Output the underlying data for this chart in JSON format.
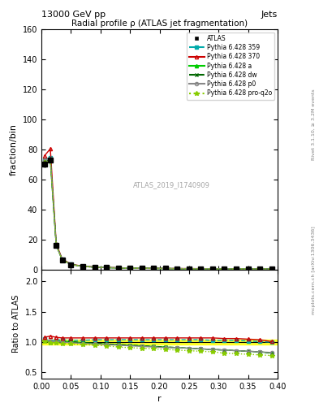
{
  "title": "Radial profile ρ (ATLAS jet fragmentation)",
  "top_left_label": "13000 GeV pp",
  "top_right_label": "Jets",
  "xlabel": "r",
  "ylabel_main": "fraction/bin",
  "ylabel_ratio": "Ratio to ATLAS",
  "right_label1": "Rivet 3.1.10, ≥ 3.2M events",
  "right_label2": "mcplots.cern.ch [arXiv:1306.3436]",
  "watermark": "ATLAS_2019_I1740909",
  "xlim": [
    0,
    0.4
  ],
  "main_ylim": [
    0,
    160
  ],
  "main_yticks": [
    0,
    20,
    40,
    60,
    80,
    100,
    120,
    140,
    160
  ],
  "ratio_ylim": [
    0.4,
    2.2
  ],
  "ratio_yticks": [
    0.5,
    1.0,
    1.5,
    2.0
  ],
  "r_values": [
    0.005,
    0.015,
    0.025,
    0.035,
    0.05,
    0.07,
    0.09,
    0.11,
    0.13,
    0.15,
    0.17,
    0.19,
    0.21,
    0.23,
    0.25,
    0.27,
    0.29,
    0.31,
    0.33,
    0.35,
    0.37,
    0.39
  ],
  "atlas_main": [
    70.0,
    73.0,
    16.0,
    6.5,
    3.2,
    2.0,
    1.5,
    1.2,
    1.0,
    0.85,
    0.75,
    0.65,
    0.58,
    0.52,
    0.47,
    0.43,
    0.4,
    0.37,
    0.35,
    0.33,
    0.31,
    0.29
  ],
  "atlas_err": [
    2.0,
    2.0,
    0.5,
    0.3,
    0.15,
    0.08,
    0.06,
    0.05,
    0.04,
    0.035,
    0.03,
    0.025,
    0.022,
    0.02,
    0.018,
    0.016,
    0.015,
    0.014,
    0.013,
    0.012,
    0.011,
    0.01
  ],
  "p359_ratio": [
    1.05,
    1.02,
    1.03,
    1.04,
    1.03,
    1.03,
    1.04,
    1.04,
    1.04,
    1.04,
    1.04,
    1.04,
    1.04,
    1.04,
    1.04,
    1.04,
    1.03,
    1.03,
    1.03,
    1.02,
    1.01,
    1.0
  ],
  "p370_ratio": [
    1.08,
    1.1,
    1.08,
    1.07,
    1.07,
    1.07,
    1.07,
    1.07,
    1.07,
    1.07,
    1.07,
    1.07,
    1.07,
    1.07,
    1.07,
    1.07,
    1.07,
    1.06,
    1.06,
    1.05,
    1.04,
    1.01
  ],
  "pa_ratio": [
    1.03,
    1.0,
    1.01,
    1.01,
    1.01,
    0.99,
    0.98,
    0.97,
    0.96,
    0.95,
    0.94,
    0.93,
    0.92,
    0.91,
    0.9,
    0.89,
    0.88,
    0.87,
    0.86,
    0.85,
    0.84,
    0.82
  ],
  "pdw_ratio": [
    1.03,
    1.0,
    1.01,
    1.01,
    1.01,
    0.99,
    0.98,
    0.97,
    0.96,
    0.95,
    0.94,
    0.93,
    0.92,
    0.91,
    0.9,
    0.89,
    0.88,
    0.87,
    0.86,
    0.85,
    0.84,
    0.82
  ],
  "pp0_ratio": [
    1.04,
    1.01,
    1.01,
    1.0,
    0.99,
    0.98,
    0.97,
    0.96,
    0.95,
    0.94,
    0.93,
    0.92,
    0.91,
    0.91,
    0.9,
    0.89,
    0.88,
    0.87,
    0.86,
    0.85,
    0.84,
    0.83
  ],
  "pq2o_ratio": [
    1.02,
    0.99,
    0.99,
    0.98,
    0.97,
    0.96,
    0.95,
    0.94,
    0.92,
    0.91,
    0.9,
    0.89,
    0.88,
    0.87,
    0.86,
    0.85,
    0.84,
    0.82,
    0.81,
    0.8,
    0.79,
    0.78
  ],
  "color_359": "#00aaaa",
  "color_370": "#cc0000",
  "color_a": "#00cc00",
  "color_dw": "#006600",
  "color_p0": "#888888",
  "color_q2o": "#88cc00",
  "atlas_color": "#000000",
  "atlas_fill": "#ffff00",
  "atlas_ratio_err": 0.04
}
